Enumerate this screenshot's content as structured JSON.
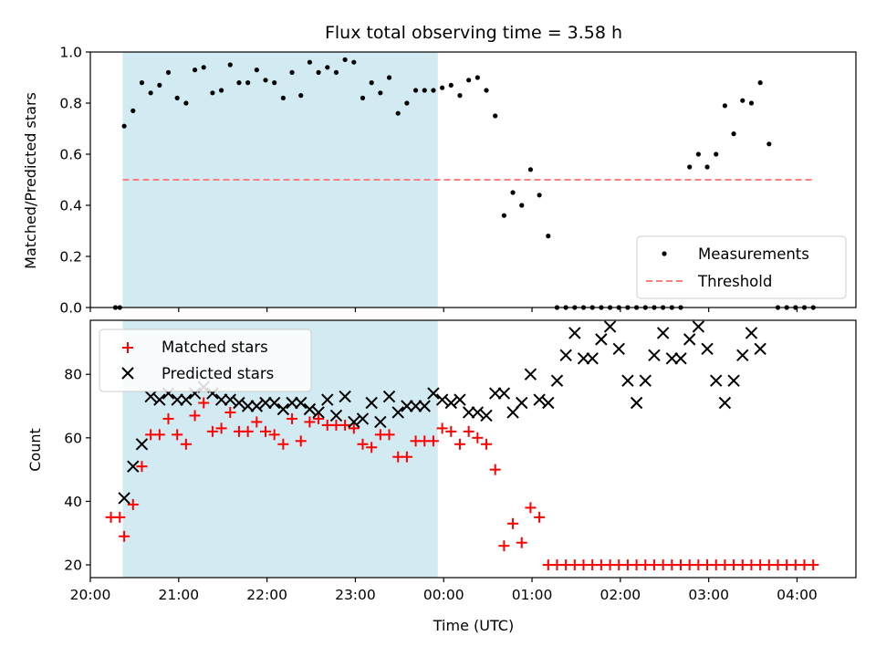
{
  "chart_data": [
    {
      "type": "scatter",
      "title": "Flux total observing time = 3.58 h",
      "ylabel": "Matched/Predicted stars",
      "xlim": [
        "20:00",
        "04:40"
      ],
      "ylim": [
        0,
        1.0
      ],
      "y_ticks": [
        "0.0",
        "0.2",
        "0.4",
        "0.6",
        "0.8",
        "1.0"
      ],
      "grid": false,
      "legend_position": "lower-right",
      "observing_window": {
        "start": "20:22",
        "end": "23:56",
        "color": "#add8e6"
      },
      "threshold": {
        "name": "Threshold",
        "value": 0.5,
        "start": "20:22",
        "end": "04:10",
        "color": "#ff7f7f"
      },
      "series": [
        {
          "name": "Measurements",
          "color": "#000000",
          "x": [
            "20:17",
            "20:20",
            "20:23",
            "20:29",
            "20:35",
            "20:41",
            "20:47",
            "20:53",
            "20:59",
            "21:05",
            "21:11",
            "21:17",
            "21:23",
            "21:29",
            "21:35",
            "21:41",
            "21:47",
            "21:53",
            "21:59",
            "22:05",
            "22:11",
            "22:17",
            "22:23",
            "22:29",
            "22:35",
            "22:41",
            "22:47",
            "22:53",
            "22:59",
            "23:05",
            "23:11",
            "23:17",
            "23:23",
            "23:29",
            "23:35",
            "23:41",
            "23:47",
            "23:53",
            "23:59",
            "00:05",
            "00:11",
            "00:17",
            "00:23",
            "00:29",
            "00:35",
            "00:41",
            "00:47",
            "00:53",
            "00:59",
            "01:05",
            "01:11",
            "01:17",
            "01:23",
            "01:29",
            "01:35",
            "01:41",
            "01:47",
            "01:53",
            "01:59",
            "02:05",
            "02:11",
            "02:17",
            "02:23",
            "02:29",
            "02:35",
            "02:41",
            "02:47",
            "02:53",
            "02:59",
            "03:05",
            "03:11",
            "03:17",
            "03:23",
            "03:29",
            "03:35",
            "03:41",
            "03:47",
            "03:53",
            "03:59",
            "04:05",
            "04:11"
          ],
          "y": [
            0.0,
            0.0,
            0.71,
            0.77,
            0.88,
            0.84,
            0.87,
            0.92,
            0.82,
            0.8,
            0.93,
            0.94,
            0.84,
            0.85,
            0.95,
            0.88,
            0.88,
            0.93,
            0.89,
            0.88,
            0.82,
            0.92,
            0.83,
            0.96,
            0.92,
            0.94,
            0.92,
            0.97,
            0.96,
            0.82,
            0.88,
            0.84,
            0.9,
            0.76,
            0.8,
            0.85,
            0.85,
            0.85,
            0.86,
            0.87,
            0.83,
            0.89,
            0.9,
            0.85,
            0.75,
            0.36,
            0.45,
            0.4,
            0.54,
            0.44,
            0.28,
            0.0,
            0.0,
            0.0,
            0.0,
            0.0,
            0.0,
            0.0,
            0.0,
            0.0,
            0.0,
            0.0,
            0.0,
            0.0,
            0.0,
            0.0,
            0.55,
            0.6,
            0.55,
            0.6,
            0.79,
            0.68,
            0.81,
            0.8,
            0.88,
            0.64,
            0.0,
            0.0,
            0.0,
            0.0,
            0.0
          ]
        }
      ]
    },
    {
      "type": "scatter",
      "xlabel": "Time (UTC)",
      "ylabel": "Count",
      "xlim": [
        "20:00",
        "04:40"
      ],
      "ylim": [
        16,
        97
      ],
      "x_ticks": [
        "20:00",
        "21:00",
        "22:00",
        "23:00",
        "00:00",
        "01:00",
        "02:00",
        "03:00",
        "04:00"
      ],
      "y_ticks": [
        "20",
        "40",
        "60",
        "80"
      ],
      "grid": false,
      "legend_position": "upper-left",
      "observing_window": {
        "start": "20:22",
        "end": "23:56",
        "color": "#add8e6"
      },
      "series": [
        {
          "name": "Matched stars",
          "marker": "plus",
          "color": "#ff0000",
          "x": [
            "20:14",
            "20:20",
            "20:23",
            "20:29",
            "20:35",
            "20:41",
            "20:47",
            "20:53",
            "20:59",
            "21:05",
            "21:11",
            "21:17",
            "21:23",
            "21:29",
            "21:35",
            "21:41",
            "21:47",
            "21:53",
            "21:59",
            "22:05",
            "22:11",
            "22:17",
            "22:23",
            "22:29",
            "22:35",
            "22:41",
            "22:47",
            "22:53",
            "22:59",
            "23:05",
            "23:11",
            "23:17",
            "23:23",
            "23:29",
            "23:35",
            "23:41",
            "23:47",
            "23:53",
            "23:59",
            "00:05",
            "00:11",
            "00:17",
            "00:23",
            "00:29",
            "00:35",
            "00:41",
            "00:47",
            "00:53",
            "00:59",
            "01:05",
            "01:11",
            "01:17",
            "01:23",
            "01:29",
            "01:35",
            "01:41",
            "01:47",
            "01:53",
            "01:59",
            "02:05",
            "02:11",
            "02:17",
            "02:23",
            "02:29",
            "02:35",
            "02:41",
            "02:47",
            "02:53",
            "02:59",
            "03:05",
            "03:11",
            "03:17",
            "03:23",
            "03:29",
            "03:35",
            "03:41",
            "03:47",
            "03:53",
            "03:59",
            "04:05",
            "04:11"
          ],
          "y": [
            35,
            35,
            29,
            39,
            51,
            61,
            61,
            66,
            61,
            58,
            67,
            71,
            62,
            63,
            68,
            62,
            62,
            65,
            62,
            61,
            58,
            66,
            59,
            65,
            66,
            64,
            64,
            64,
            63,
            58,
            57,
            61,
            61,
            54,
            54,
            59,
            59,
            59,
            63,
            62,
            58,
            62,
            60,
            58,
            50,
            26,
            33,
            27,
            38,
            35,
            20,
            20,
            20,
            20,
            20,
            20,
            20,
            20,
            20,
            20,
            20,
            20,
            20,
            20,
            20,
            20,
            20,
            20,
            20,
            20,
            20,
            20,
            20,
            20,
            20,
            20,
            20,
            20,
            20,
            20,
            20
          ]
        },
        {
          "name": "Predicted stars",
          "marker": "x",
          "color": "#000000",
          "x": [
            "20:23",
            "20:29",
            "20:35",
            "20:41",
            "20:47",
            "20:53",
            "20:59",
            "21:05",
            "21:11",
            "21:17",
            "21:23",
            "21:29",
            "21:35",
            "21:41",
            "21:47",
            "21:53",
            "21:59",
            "22:05",
            "22:11",
            "22:17",
            "22:23",
            "22:29",
            "22:35",
            "22:41",
            "22:47",
            "22:53",
            "22:59",
            "23:05",
            "23:11",
            "23:17",
            "23:23",
            "23:29",
            "23:35",
            "23:41",
            "23:47",
            "23:53",
            "23:59",
            "00:05",
            "00:11",
            "00:17",
            "00:23",
            "00:29",
            "00:35",
            "00:41",
            "00:47",
            "00:53",
            "00:59",
            "01:05",
            "01:11",
            "01:17",
            "01:23",
            "01:29",
            "01:35",
            "01:41",
            "01:47",
            "01:53",
            "01:59",
            "02:05",
            "02:11",
            "02:17",
            "02:23",
            "02:29",
            "02:35",
            "02:41",
            "02:47",
            "02:53",
            "02:59",
            "03:05",
            "03:11",
            "03:17",
            "03:23",
            "03:29",
            "03:35"
          ],
          "y": [
            41,
            51,
            58,
            73,
            72,
            74,
            72,
            72,
            74,
            76,
            74,
            72,
            72,
            71,
            70,
            70,
            71,
            71,
            69,
            71,
            71,
            69,
            68,
            72,
            67,
            73,
            65,
            66,
            71,
            65,
            73,
            68,
            70,
            70,
            70,
            74,
            72,
            71,
            72,
            68,
            68,
            67,
            74,
            74,
            68,
            71,
            80,
            72,
            71,
            78,
            86,
            93,
            85,
            85,
            91,
            95,
            88,
            78,
            71,
            78,
            86,
            93,
            85,
            85,
            91,
            95,
            88,
            78,
            71,
            78,
            86,
            93,
            88
          ]
        }
      ]
    }
  ]
}
